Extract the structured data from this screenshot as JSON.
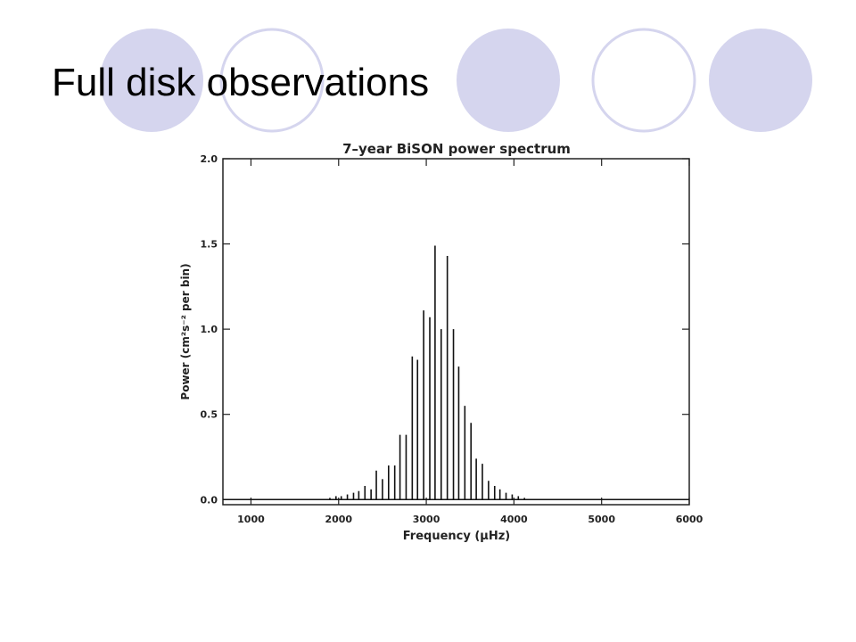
{
  "slide": {
    "title": "Full disk observations"
  },
  "chart_data": {
    "type": "spectrum",
    "title": "7–year BiSON power spectrum",
    "xlabel": "Frequency (μHz)",
    "ylabel": "Power (cm²s⁻² per bin)",
    "color": "#111111",
    "x": [
      1900,
      1970,
      2030,
      2100,
      2170,
      2230,
      2300,
      2370,
      2430,
      2500,
      2570,
      2640,
      2700,
      2770,
      2840,
      2900,
      2970,
      3040,
      3100,
      3170,
      3240,
      3310,
      3370,
      3440,
      3510,
      3570,
      3640,
      3710,
      3780,
      3840,
      3910,
      3980,
      4050,
      4120
    ],
    "values": [
      0.01,
      0.02,
      0.02,
      0.03,
      0.04,
      0.05,
      0.08,
      0.06,
      0.17,
      0.12,
      0.2,
      0.2,
      0.38,
      0.38,
      0.84,
      0.82,
      1.11,
      1.07,
      1.49,
      1.0,
      1.43,
      1.0,
      0.78,
      0.55,
      0.45,
      0.24,
      0.21,
      0.11,
      0.08,
      0.06,
      0.04,
      0.03,
      0.02,
      0.01
    ],
    "xlim": [
      680,
      6000
    ],
    "xticks": [
      1000,
      2000,
      3000,
      4000,
      5000,
      6000
    ],
    "ylim": [
      -0.03,
      2.0
    ],
    "yticks": [
      {
        "value": 0,
        "label": "0.0"
      },
      0.5,
      {
        "value": 1,
        "label": "1.0"
      },
      1.5,
      {
        "value": 2,
        "label": "2.0"
      }
    ]
  }
}
